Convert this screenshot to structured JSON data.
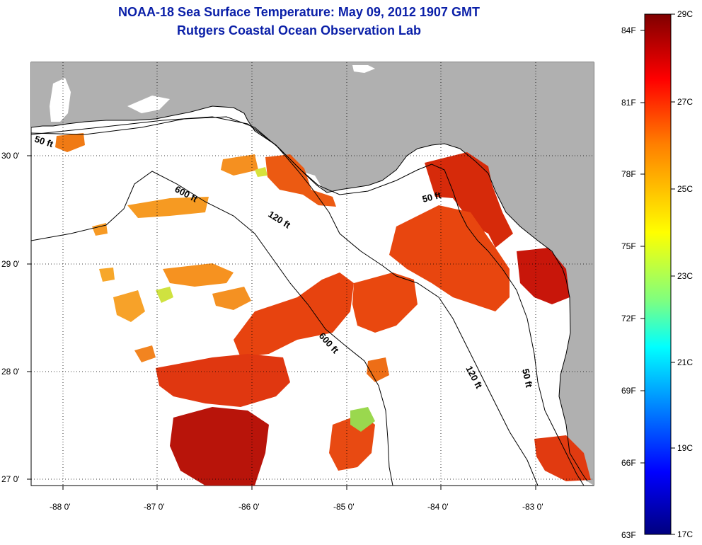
{
  "title": {
    "line1": "NOAA-18 Sea Surface Temperature:  May 09, 2012 1907 GMT",
    "line2": "Rutgers Coastal Ocean Observation Lab"
  },
  "map": {
    "lon_labels": [
      "-88 0'",
      "-87 0'",
      "-86 0'",
      "-85 0'",
      "-84 0'",
      "-83 0'"
    ],
    "lat_labels": [
      "30 0'",
      "29 0'",
      "28 0'",
      "27 0'"
    ],
    "contour_labels": {
      "c50_west": "50 ft",
      "c600_north": "600 ft",
      "c120_north": "120 ft",
      "c50_bigbend": "50 ft",
      "c600_mid": "600 ft",
      "c120_south": "120 ft",
      "c50_south": "50 ft"
    },
    "colors": {
      "land": "#b0b0b0",
      "ocean": "#ffffff",
      "grid": "#000000"
    }
  },
  "colorbar": {
    "fahrenheit_labels": [
      "84F",
      "81F",
      "78F",
      "75F",
      "72F",
      "69F",
      "66F",
      "63F"
    ],
    "celsius_labels": [
      "29C",
      "27C",
      "25C",
      "23C",
      "21C",
      "19C",
      "17C"
    ],
    "stops": [
      "#7f0000",
      "#ff0000",
      "#ff7f00",
      "#ffff00",
      "#7fff7f",
      "#00ffff",
      "#007fff",
      "#0000ff",
      "#00007f"
    ]
  }
}
